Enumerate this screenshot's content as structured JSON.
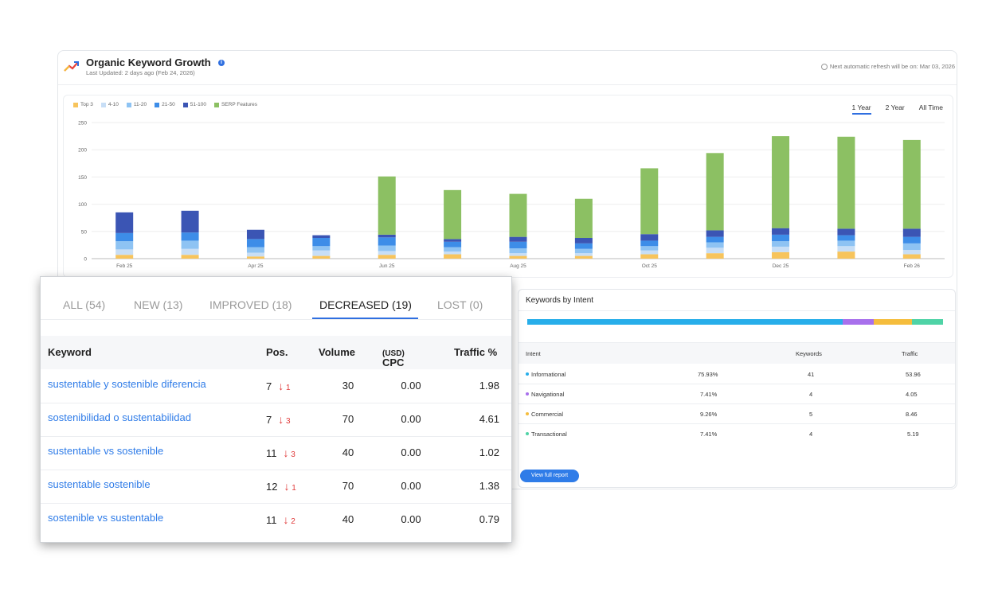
{
  "header": {
    "title": "Organic Keyword Growth",
    "info_icon": "i",
    "last_updated": "Last Updated: 2 days ago (Feb 24, 2026)",
    "refresh_note": "Next automatic refresh will be on: Mar 03, 2026"
  },
  "legend": [
    "Top 3",
    "4-10",
    "11-20",
    "21-50",
    "51-100",
    "SERP Features"
  ],
  "colors": {
    "top3": "#f7c45c",
    "p4_10": "#c7def6",
    "p11_20": "#8ec3f3",
    "p21_50": "#3d8de8",
    "p51_100": "#3b55b4",
    "serp": "#8cc063",
    "accent": "#2f6fe0",
    "link": "#2f7ce8",
    "decrease": "#e03a3a"
  },
  "ranges": [
    "1 Year",
    "2 Year",
    "All Time"
  ],
  "chart_data": {
    "type": "bar",
    "stacked": true,
    "categories": [
      "Feb 25",
      "Mar 25",
      "Apr 25",
      "May 25",
      "Jun 25",
      "Jul 25",
      "Aug 25",
      "Sep 25",
      "Oct 25",
      "Nov 25",
      "Dec 25",
      "Jan 26",
      "Feb 26"
    ],
    "x_tick_labels": [
      "Feb 25",
      "Apr 25",
      "Jun 25",
      "Aug 25",
      "Oct 25",
      "Dec 25",
      "Feb 26"
    ],
    "ylim": [
      0,
      250
    ],
    "yticks": [
      0,
      50,
      100,
      150,
      200,
      250
    ],
    "series": [
      {
        "name": "Top 3",
        "values": [
          7,
          7,
          4,
          5,
          7,
          8,
          5,
          5,
          8,
          10,
          12,
          13,
          8
        ]
      },
      {
        "name": "4-10",
        "values": [
          10,
          11,
          7,
          10,
          7,
          5,
          5,
          5,
          7,
          10,
          10,
          10,
          8
        ]
      },
      {
        "name": "11-20",
        "values": [
          15,
          15,
          10,
          8,
          10,
          8,
          9,
          8,
          8,
          10,
          10,
          10,
          12
        ]
      },
      {
        "name": "21-50",
        "values": [
          15,
          15,
          15,
          15,
          15,
          10,
          12,
          10,
          10,
          10,
          12,
          10,
          12
        ]
      },
      {
        "name": "51-100",
        "values": [
          38,
          40,
          17,
          5,
          5,
          5,
          9,
          10,
          12,
          12,
          12,
          12,
          15
        ]
      },
      {
        "name": "SERP Features",
        "values": [
          0,
          0,
          0,
          0,
          107,
          90,
          79,
          72,
          121,
          142,
          169,
          169,
          163
        ]
      }
    ],
    "title": "",
    "xlabel": "",
    "ylabel": ""
  },
  "intent": {
    "title": "Keywords by Intent",
    "headers": {
      "intent": "Intent",
      "keywords": "Keywords",
      "traffic": "Traffic"
    },
    "rows": [
      {
        "name": "Informational",
        "pct": "75.93%",
        "keywords": "41",
        "traffic": "53.96",
        "share": 75.93,
        "color": "#27aeea"
      },
      {
        "name": "Navigational",
        "pct": "7.41%",
        "keywords": "4",
        "traffic": "4.05",
        "share": 7.41,
        "color": "#a870ec"
      },
      {
        "name": "Commercial",
        "pct": "9.26%",
        "keywords": "5",
        "traffic": "8.46",
        "share": 9.26,
        "color": "#f5bd3d"
      },
      {
        "name": "Transactional",
        "pct": "7.41%",
        "keywords": "4",
        "traffic": "5.19",
        "share": 7.41,
        "color": "#4fd3a6"
      }
    ],
    "button": "View full report"
  },
  "popup": {
    "tabs": [
      "ALL (54)",
      "NEW (13)",
      "IMPROVED (18)",
      "DECREASED (19)",
      "LOST (0)"
    ],
    "active_tab": "DECREASED (19)",
    "columns": {
      "keyword": "Keyword",
      "pos": "Pos.",
      "volume": "Volume",
      "cpc": "CPC",
      "cpc_unit": "(USD)",
      "traffic": "Traffic %"
    },
    "rows": [
      {
        "keyword": "sustentable y sostenible diferencia",
        "pos": "7",
        "change": "1",
        "volume": "30",
        "cpc": "0.00",
        "traffic": "1.98"
      },
      {
        "keyword": "sostenibilidad o sustentabilidad",
        "pos": "7",
        "change": "3",
        "volume": "70",
        "cpc": "0.00",
        "traffic": "4.61"
      },
      {
        "keyword": "sustentable vs sostenible",
        "pos": "11",
        "change": "3",
        "volume": "40",
        "cpc": "0.00",
        "traffic": "1.02"
      },
      {
        "keyword": "sustentable sostenible",
        "pos": "12",
        "change": "1",
        "volume": "70",
        "cpc": "0.00",
        "traffic": "1.38"
      },
      {
        "keyword": "sostenible vs sustentable",
        "pos": "11",
        "change": "2",
        "volume": "40",
        "cpc": "0.00",
        "traffic": "0.79"
      }
    ]
  }
}
